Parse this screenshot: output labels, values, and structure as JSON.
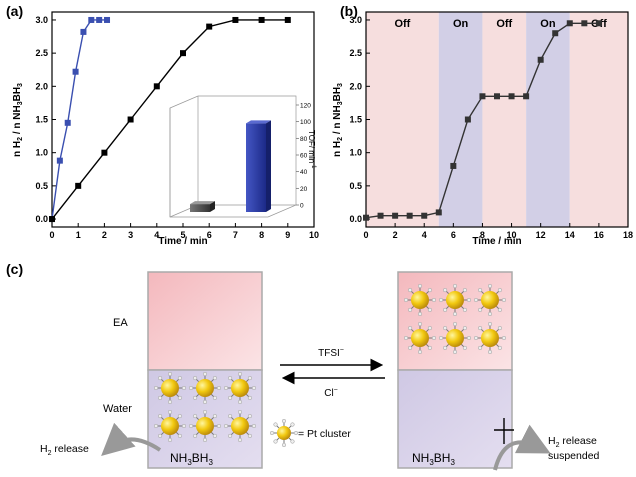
{
  "panel_labels": {
    "a": "(a)",
    "b": "(b)",
    "c": "(c)"
  },
  "chart_data": [
    {
      "id": "a",
      "type": "line",
      "xlabel": "Time / min",
      "ylabel_main": "n H",
      "ylabel_sub": "2",
      "ylabel_rest": " / n NH",
      "ylabel_sub2": "3",
      "ylabel_end": "BH",
      "ylabel_sub3": "3",
      "xlim": [
        0,
        10
      ],
      "ylim": [
        0,
        3.0
      ],
      "x_ticks": [
        "0",
        "1",
        "2",
        "3",
        "4",
        "5",
        "6",
        "7",
        "8",
        "9",
        "10"
      ],
      "y_ticks": [
        "0.0",
        "0.5",
        "1.0",
        "1.5",
        "2.0",
        "2.5",
        "3.0"
      ],
      "series": [
        {
          "color": "#3a4fb0",
          "marker": "square",
          "x": [
            0,
            0.3,
            0.6,
            0.9,
            1.2,
            1.5,
            1.8,
            2.1
          ],
          "y": [
            0,
            0.88,
            1.45,
            2.22,
            2.82,
            3.0,
            3.0,
            3.0
          ]
        },
        {
          "color": "#000000",
          "marker": "square",
          "x": [
            0,
            1,
            2,
            3,
            4,
            5,
            6,
            7,
            8,
            9
          ],
          "y": [
            0,
            0.5,
            1.0,
            1.5,
            2.0,
            2.5,
            2.9,
            3.0,
            3.0,
            3.0
          ]
        }
      ],
      "inset": {
        "type": "bar",
        "ylabel": "TOF/ min",
        "ylabel_sup": "-1",
        "y_ticks": [
          "0",
          "20",
          "40",
          "60",
          "80",
          "100",
          "120"
        ],
        "values": [
          10,
          112
        ],
        "colors": [
          "#555555",
          "#2a3aa0"
        ]
      }
    },
    {
      "id": "b",
      "type": "line",
      "xlabel": "Time / min",
      "xlim": [
        0,
        18
      ],
      "ylim": [
        0,
        3.0
      ],
      "x_ticks": [
        "0",
        "2",
        "4",
        "6",
        "8",
        "10",
        "12",
        "14",
        "16",
        "18"
      ],
      "y_ticks": [
        "0.0",
        "0.5",
        "1.0",
        "1.5",
        "2.0",
        "2.5",
        "3.0"
      ],
      "bands": [
        {
          "label": "Off",
          "from": 0,
          "to": 5,
          "color": "#f6dede"
        },
        {
          "label": "On",
          "from": 5,
          "to": 8,
          "color": "#d2cfe6"
        },
        {
          "label": "Off",
          "from": 8,
          "to": 11,
          "color": "#f6dede"
        },
        {
          "label": "On",
          "from": 11,
          "to": 14,
          "color": "#d2cfe6"
        },
        {
          "label": "Off",
          "from": 14,
          "to": 18,
          "color": "#f6dede"
        }
      ],
      "series": [
        {
          "color": "#333333",
          "marker": "square",
          "x": [
            0,
            1,
            2,
            3,
            4,
            5,
            6,
            7,
            8,
            9,
            10,
            11,
            12,
            13,
            14,
            15,
            16
          ],
          "y": [
            0.02,
            0.05,
            0.05,
            0.05,
            0.05,
            0.1,
            0.8,
            1.5,
            1.85,
            1.85,
            1.85,
            1.85,
            2.4,
            2.8,
            2.95,
            2.95,
            2.95
          ]
        }
      ]
    }
  ],
  "diagram": {
    "ea_label": "EA",
    "water_label": "Water",
    "forward_label": "TFSI",
    "forward_sup": "−",
    "backward_label": "Cl",
    "backward_sup": "−",
    "legend_text": "= Pt cluster",
    "left_compound_a": "NH",
    "left_compound_b": "3",
    "left_compound_c": "BH",
    "left_compound_d": "3",
    "right_compound_a": "NH",
    "right_compound_b": "3",
    "right_compound_c": "BH",
    "right_compound_d": "3",
    "release_a": "H",
    "release_b": "2",
    "release_c": " release",
    "suspended_a": "H",
    "suspended_b": "2",
    "suspended_c": " release",
    "suspended_line2": "suspended"
  }
}
